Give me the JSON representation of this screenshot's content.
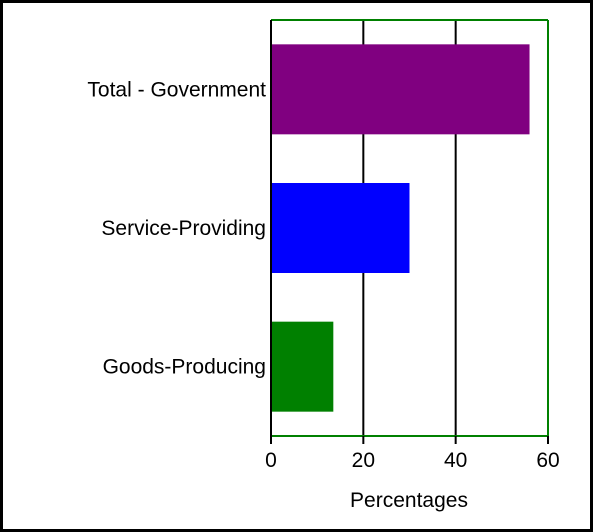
{
  "chart_data": {
    "type": "bar",
    "orientation": "horizontal",
    "categories": [
      "Total - Government",
      "Service-Providing",
      "Goods-Producing"
    ],
    "values": [
      56,
      30,
      13.5
    ],
    "colors": [
      "#800080",
      "#0000ff",
      "#008000"
    ],
    "title": "",
    "xlabel": "Percentages",
    "ylabel": "",
    "xlim": [
      0,
      60
    ],
    "xticks": [
      "0",
      "20",
      "40",
      "60"
    ],
    "grid": "vertical",
    "legend": "none",
    "colors_axis": {
      "frame": "#008000",
      "gridline": "#000000"
    }
  }
}
